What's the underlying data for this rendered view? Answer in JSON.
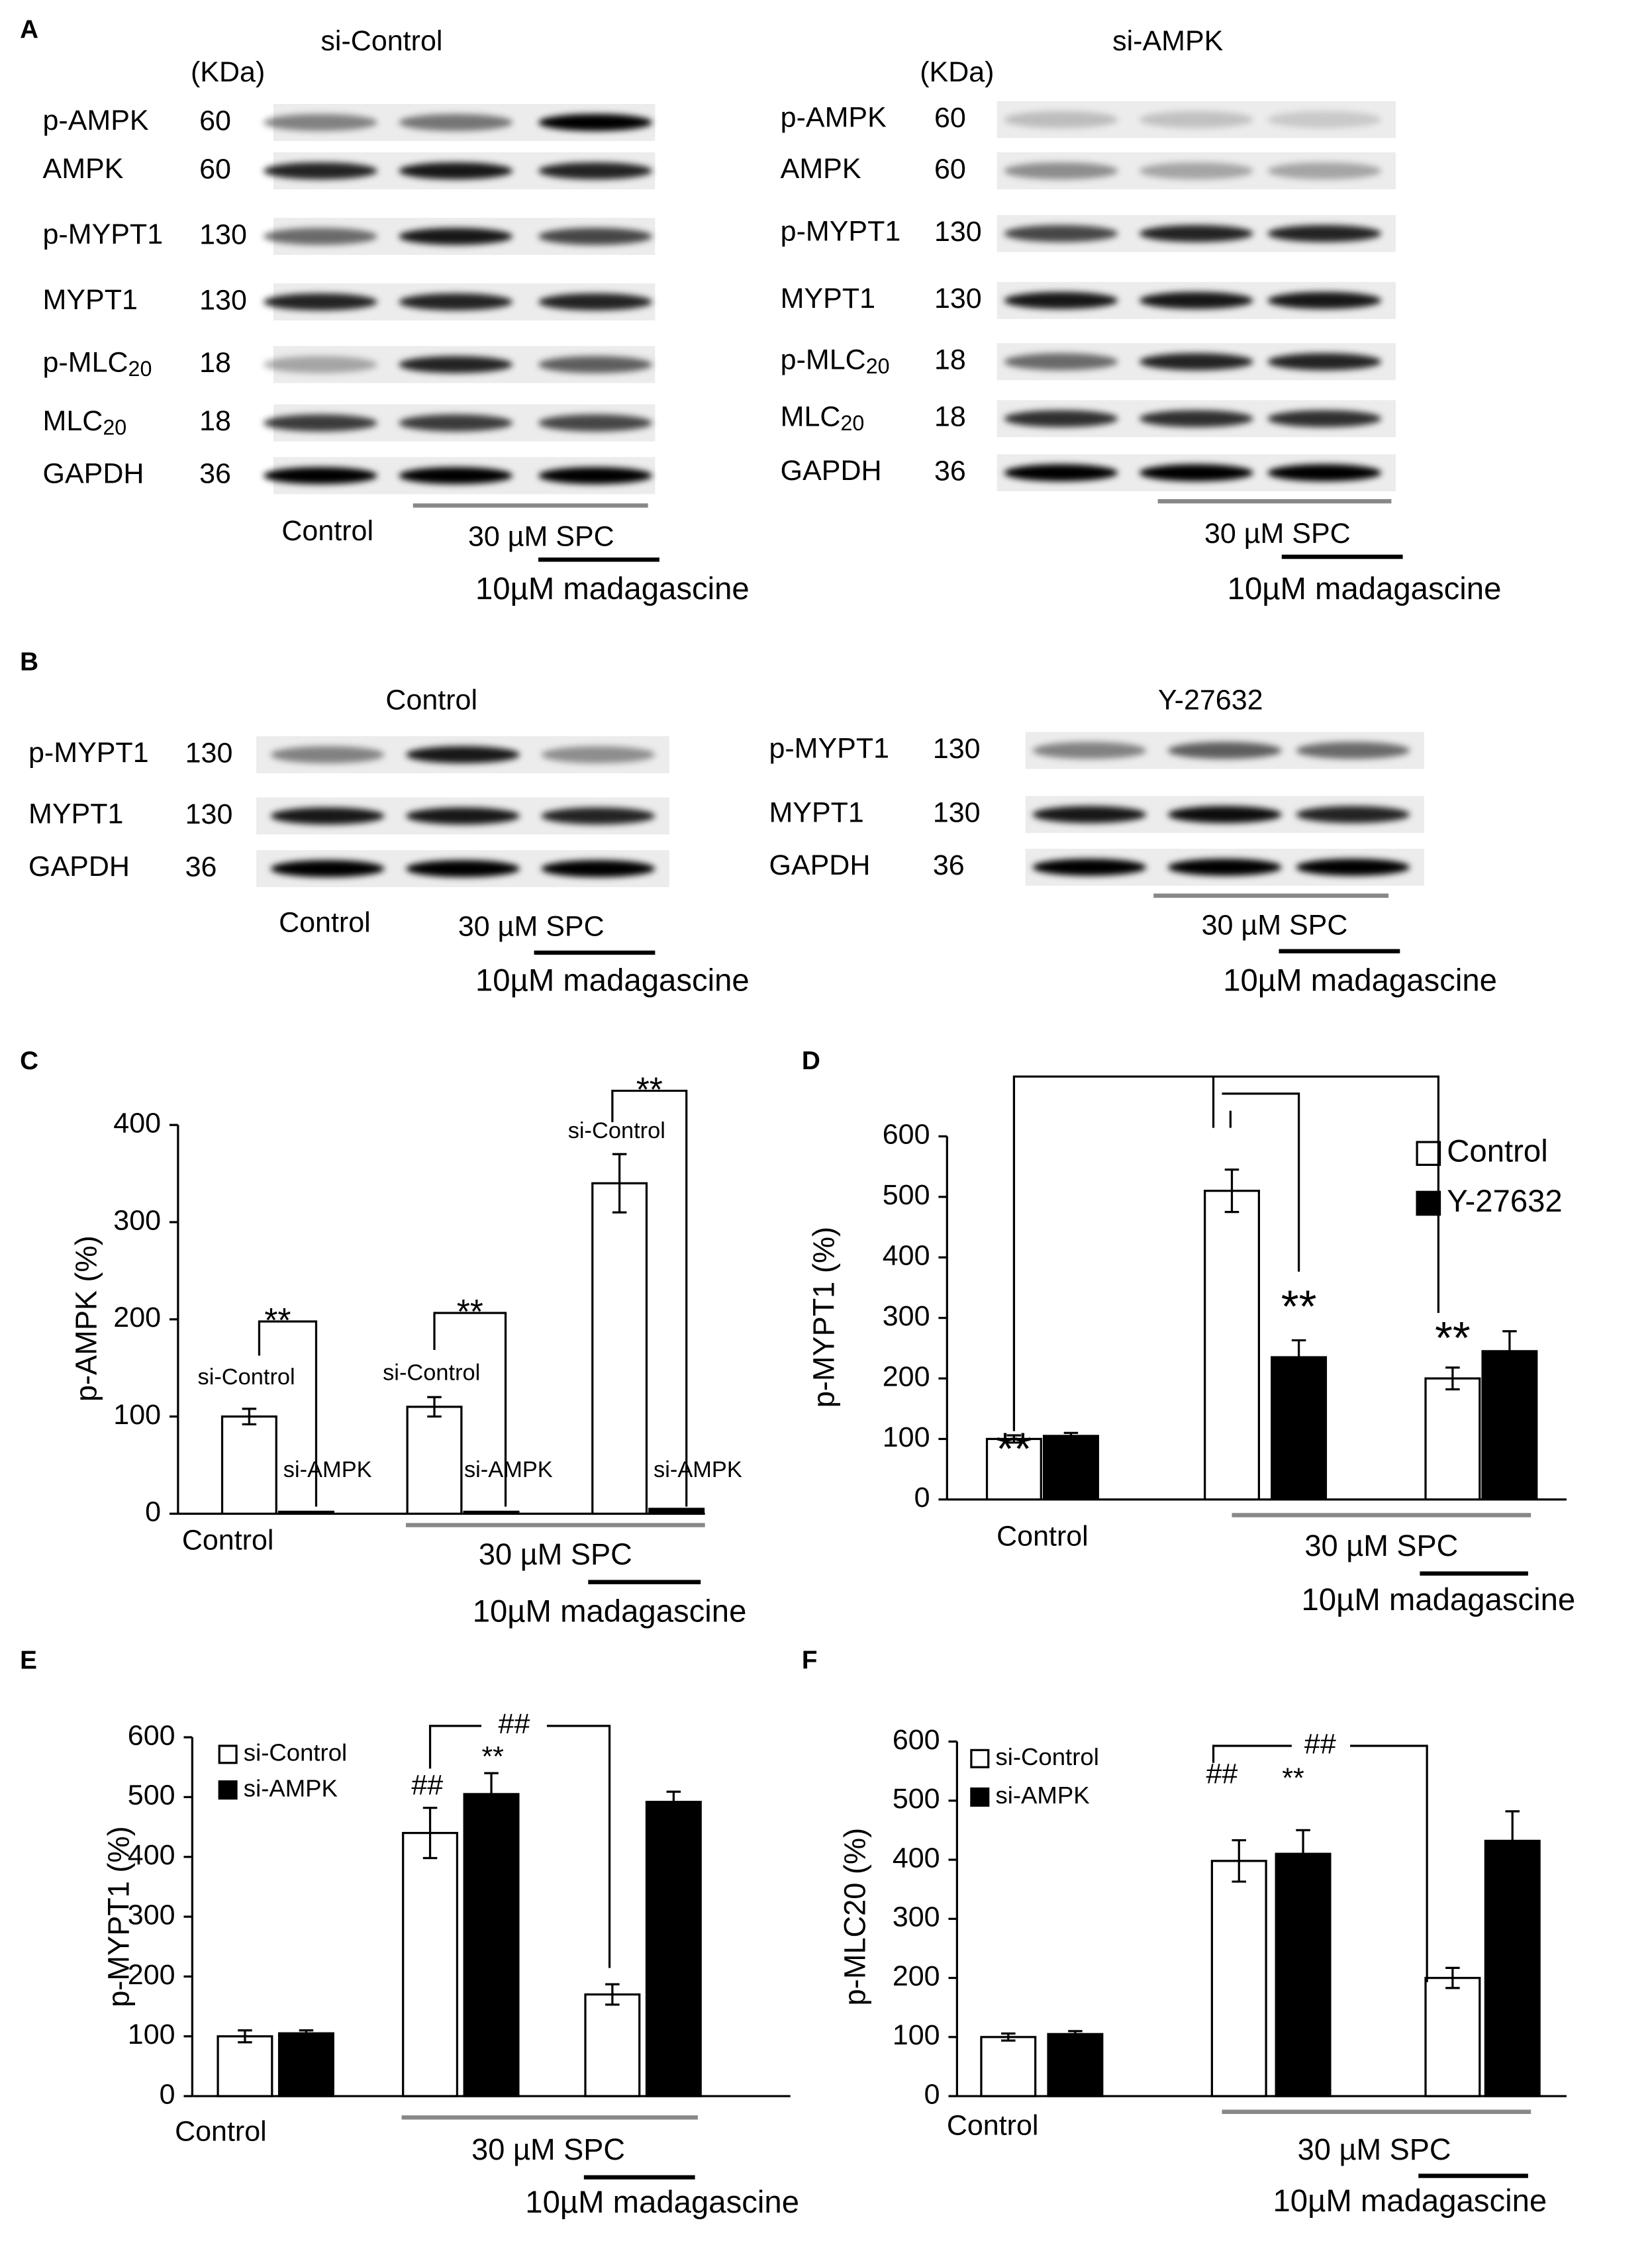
{
  "panel_labels": [
    "A",
    "B",
    "C",
    "D",
    "E",
    "F"
  ],
  "blots": [
    {
      "title": "si-Control",
      "kda_header": "(KDa)",
      "rows": [
        {
          "label": "p-AMPK",
          "kda": 60
        },
        {
          "label": "AMPK",
          "kda": 60
        },
        {
          "label": "p-MYPT1",
          "kda": 130
        },
        {
          "label": "MYPT1",
          "kda": 130
        },
        {
          "label": "p-MLC",
          "subscript": "20",
          "kda": 18
        },
        {
          "label": "MLC",
          "subscript": "20",
          "kda": 18
        },
        {
          "label": "GAPDH",
          "kda": 36
        }
      ],
      "lane_labels": {
        "control": "Control",
        "spc": "30 µM SPC",
        "madagascine": "10µM madagascine"
      }
    },
    {
      "title": "si-AMPK",
      "kda_header": "(KDa)",
      "rows": [
        {
          "label": "p-AMPK",
          "kda": 60
        },
        {
          "label": "AMPK",
          "kda": 60
        },
        {
          "label": "p-MYPT1",
          "kda": 130
        },
        {
          "label": "MYPT1",
          "kda": 130
        },
        {
          "label": "p-MLC",
          "subscript": "20",
          "kda": 18
        },
        {
          "label": "MLC",
          "subscript": "20",
          "kda": 18
        },
        {
          "label": "GAPDH",
          "kda": 36
        }
      ],
      "lane_labels": {
        "spc": "30 µM SPC",
        "madagascine": "10µM madagascine"
      }
    },
    {
      "title": "Control",
      "rows": [
        {
          "label": "p-MYPT1",
          "kda": 130
        },
        {
          "label": "MYPT1",
          "kda": 130
        },
        {
          "label": "GAPDH",
          "kda": 36
        }
      ],
      "lane_labels": {
        "control": "Control",
        "spc": "30 µM SPC",
        "madagascine": "10µM madagascine"
      }
    },
    {
      "title": "Y-27632",
      "rows": [
        {
          "label": "p-MYPT1",
          "kda": 130
        },
        {
          "label": "MYPT1",
          "kda": 130
        },
        {
          "label": "GAPDH",
          "kda": 36
        }
      ],
      "lane_labels": {
        "spc": "30 µM SPC",
        "madagascine": "10µM madagascine"
      }
    }
  ],
  "chart_data": [
    {
      "type": "bar",
      "ylabel": "p-AMPK (%)",
      "categories": [
        "Control",
        null,
        null
      ],
      "spc_label": "30 µM SPC",
      "madagascine_label": "10µM madagascine",
      "ylim": [
        0,
        400
      ],
      "yticks": [
        0,
        100,
        200,
        300,
        400
      ],
      "series": [
        {
          "name": "si-Control",
          "color": "#ffffff",
          "values": [
            100,
            110,
            340
          ],
          "errors": [
            8,
            10,
            30
          ]
        },
        {
          "name": "si-AMPK",
          "color": "#000000",
          "values": [
            2,
            2,
            5
          ]
        }
      ],
      "annotations": [
        "**",
        "**",
        "**"
      ]
    },
    {
      "type": "bar",
      "ylabel": "p-MYPT1 (%)",
      "categories": [
        "Control",
        null,
        null
      ],
      "spc_label": "30 µM SPC",
      "madagascine_label": "10µM madagascine",
      "ylim": [
        0,
        600
      ],
      "yticks": [
        0,
        100,
        200,
        300,
        400,
        500,
        600
      ],
      "legend": "top-right",
      "series": [
        {
          "name": "Control",
          "color": "#ffffff",
          "values": [
            100,
            510,
            200
          ],
          "errors": [
            6,
            35,
            18
          ]
        },
        {
          "name": "Y-27632",
          "color": "#000000",
          "values": [
            105,
            235,
            245
          ],
          "errors": [
            5,
            28,
            33
          ]
        }
      ],
      "annotations": [
        "**",
        "**",
        "**"
      ]
    },
    {
      "type": "bar",
      "ylabel": "p-MYPT1 (%)",
      "categories": [
        "Control",
        null,
        null
      ],
      "spc_label": "30 µM SPC",
      "madagascine_label": "10µM madagascine",
      "ylim": [
        0,
        600
      ],
      "yticks": [
        0,
        100,
        200,
        300,
        400,
        500,
        600
      ],
      "legend": "top-left",
      "series": [
        {
          "name": "si-Control",
          "color": "#ffffff",
          "values": [
            100,
            440,
            170
          ],
          "errors": [
            10,
            42,
            17
          ]
        },
        {
          "name": "si-AMPK",
          "color": "#000000",
          "values": [
            105,
            505,
            492
          ],
          "errors": [
            5,
            35,
            17
          ]
        }
      ],
      "annotations": [
        "##",
        "**",
        "##"
      ]
    },
    {
      "type": "bar",
      "ylabel": "p-MLC20 (%)",
      "categories": [
        "Control",
        null,
        null
      ],
      "spc_label": "30 µM SPC",
      "madagascine_label": "10µM madagascine",
      "ylim": [
        0,
        600
      ],
      "yticks": [
        0,
        100,
        200,
        300,
        400,
        500,
        600
      ],
      "legend": "top-left",
      "series": [
        {
          "name": "si-Control",
          "color": "#ffffff",
          "values": [
            100,
            398,
            200
          ],
          "errors": [
            6,
            35,
            17
          ]
        },
        {
          "name": "si-AMPK",
          "color": "#000000",
          "values": [
            105,
            410,
            432
          ],
          "errors": [
            5,
            40,
            50
          ]
        }
      ],
      "annotations": [
        "##",
        "**",
        "##"
      ]
    }
  ]
}
